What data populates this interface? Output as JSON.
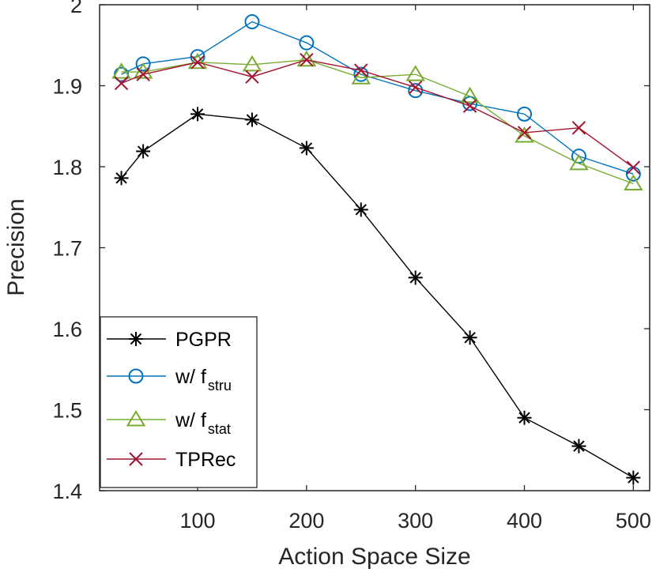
{
  "chart_data": {
    "type": "line",
    "title": "",
    "xlabel": "Action Space Size",
    "ylabel": "Precision",
    "xlim": [
      10,
      515
    ],
    "ylim": [
      1.4,
      2.0
    ],
    "xticks": [
      100,
      200,
      300,
      400,
      500
    ],
    "yticks": [
      1.4,
      1.5,
      1.6,
      1.7,
      1.8,
      1.9,
      2.0
    ],
    "xtick_labels": [
      "100",
      "200",
      "300",
      "400",
      "500"
    ],
    "ytick_labels": [
      "1.4",
      "1.5",
      "1.6",
      "1.7",
      "1.8",
      "1.9",
      "2"
    ],
    "x": [
      30,
      50,
      100,
      150,
      200,
      250,
      300,
      350,
      400,
      450,
      500
    ],
    "legend_position": "bottom-left",
    "grid": false,
    "series": [
      {
        "name": "PGPR",
        "legend_main": "PGPR",
        "legend_sub": "",
        "color": "#000000",
        "marker": "asterisk",
        "values": [
          1.786,
          1.819,
          1.865,
          1.858,
          1.823,
          1.747,
          1.663,
          1.589,
          1.49,
          1.455,
          1.416
        ]
      },
      {
        "name": "w/ f_stru",
        "legend_main": "w/ f",
        "legend_sub": "stru",
        "color": "#0072BD",
        "marker": "circle",
        "values": [
          1.914,
          1.927,
          1.936,
          1.979,
          1.953,
          1.914,
          1.894,
          1.878,
          1.865,
          1.813,
          1.791
        ]
      },
      {
        "name": "w/ f_stat",
        "legend_main": "w/ f",
        "legend_sub": "stat",
        "color": "#77AC30",
        "marker": "triangle",
        "values": [
          1.917,
          1.917,
          1.929,
          1.926,
          1.932,
          1.91,
          1.914,
          1.887,
          1.838,
          1.804,
          1.779
        ]
      },
      {
        "name": "TPRec",
        "legend_main": "TPRec",
        "legend_sub": "",
        "color": "#A2142F",
        "marker": "x",
        "values": [
          1.903,
          1.914,
          1.929,
          1.911,
          1.932,
          1.919,
          1.898,
          1.875,
          1.842,
          1.848,
          1.799
        ]
      }
    ]
  }
}
